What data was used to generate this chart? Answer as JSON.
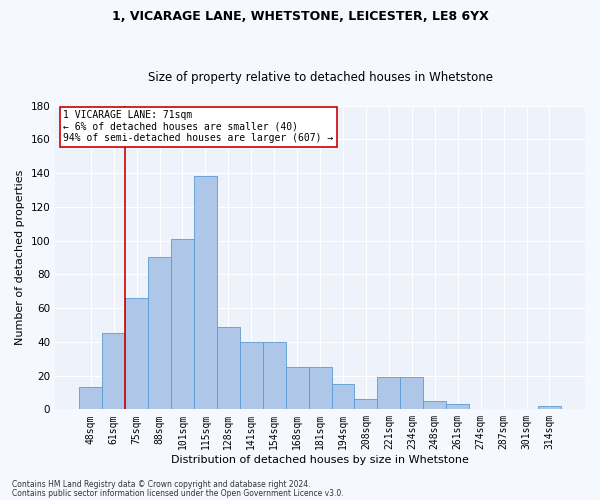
{
  "title1": "1, VICARAGE LANE, WHETSTONE, LEICESTER, LE8 6YX",
  "title2": "Size of property relative to detached houses in Whetstone",
  "xlabel": "Distribution of detached houses by size in Whetstone",
  "ylabel": "Number of detached properties",
  "footer1": "Contains HM Land Registry data © Crown copyright and database right 2024.",
  "footer2": "Contains public sector information licensed under the Open Government Licence v3.0.",
  "categories": [
    "48sqm",
    "61sqm",
    "75sqm",
    "88sqm",
    "101sqm",
    "115sqm",
    "128sqm",
    "141sqm",
    "154sqm",
    "168sqm",
    "181sqm",
    "194sqm",
    "208sqm",
    "221sqm",
    "234sqm",
    "248sqm",
    "261sqm",
    "274sqm",
    "287sqm",
    "301sqm",
    "314sqm"
  ],
  "values": [
    13,
    45,
    66,
    90,
    101,
    138,
    49,
    40,
    40,
    25,
    25,
    15,
    6,
    19,
    19,
    5,
    3,
    0,
    0,
    0,
    2
  ],
  "bar_color": "#aec6e8",
  "bar_edge_color": "#5b9bd5",
  "bar_width": 1.0,
  "ylim": [
    0,
    180
  ],
  "yticks": [
    0,
    20,
    40,
    60,
    80,
    100,
    120,
    140,
    160,
    180
  ],
  "property_label": "1 VICARAGE LANE: 71sqm",
  "annotation_line1": "← 6% of detached houses are smaller (40)",
  "annotation_line2": "94% of semi-detached houses are larger (607) →",
  "vline_color": "#cc0000",
  "annotation_box_color": "#cc0000",
  "bg_color": "#eef2fb",
  "grid_color": "#ffffff",
  "fig_bg_color": "#f5f8ff",
  "title1_fontsize": 9,
  "title2_fontsize": 8.5,
  "xlabel_fontsize": 8,
  "ylabel_fontsize": 8,
  "annotation_fontsize": 7,
  "tick_fontsize": 7,
  "ytick_fontsize": 7.5,
  "footer_fontsize": 5.5,
  "vline_x": 1.5
}
